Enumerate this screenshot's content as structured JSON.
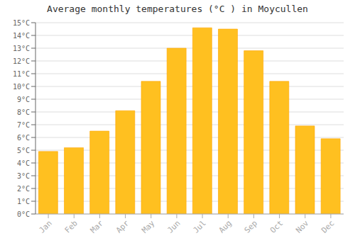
{
  "chart_data": {
    "type": "bar",
    "title": "Average monthly temperatures (°C ) in Moycullen",
    "categories": [
      "Jan",
      "Feb",
      "Mar",
      "Apr",
      "May",
      "Jun",
      "Jul",
      "Aug",
      "Sep",
      "Oct",
      "Nov",
      "Dec"
    ],
    "values": [
      4.9,
      5.2,
      6.5,
      8.1,
      10.4,
      13.0,
      14.6,
      14.5,
      12.8,
      10.4,
      6.9,
      5.9
    ],
    "color": "#FFC020",
    "ylim": [
      0,
      15
    ],
    "yticks": [
      {
        "value": 0,
        "label": "0°C"
      },
      {
        "value": 1,
        "label": "1°C"
      },
      {
        "value": 2,
        "label": "2°C"
      },
      {
        "value": 3,
        "label": "3°C"
      },
      {
        "value": 4,
        "label": "4°C"
      },
      {
        "value": 5,
        "label": "5°C"
      },
      {
        "value": 6,
        "label": "6°C"
      },
      {
        "value": 7,
        "label": "7°C"
      },
      {
        "value": 8,
        "label": "8°C"
      },
      {
        "value": 9,
        "label": "9°C"
      },
      {
        "value": 10,
        "label": "10°C"
      },
      {
        "value": 11,
        "label": "11°C"
      },
      {
        "value": 12,
        "label": "12°C"
      },
      {
        "value": 13,
        "label": "13°C"
      },
      {
        "value": 14,
        "label": "14°C"
      },
      {
        "value": 15,
        "label": "15°C"
      }
    ],
    "grid": true
  }
}
